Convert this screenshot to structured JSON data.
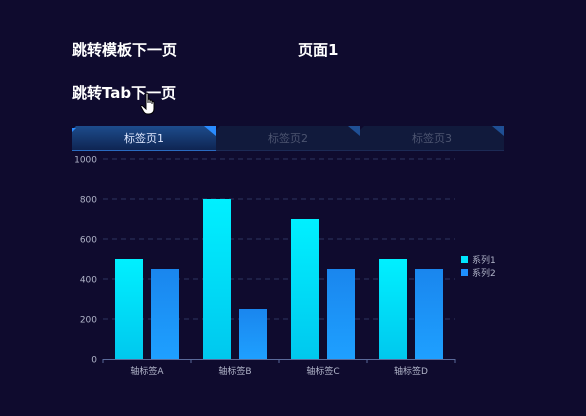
{
  "links": {
    "next_template": "跳转模板下一页",
    "next_tab": "跳转Tab下一页"
  },
  "page_title": "页面1",
  "tabs": [
    {
      "label": "标签页1",
      "active": true
    },
    {
      "label": "标签页2",
      "active": false
    },
    {
      "label": "标签页3",
      "active": false
    }
  ],
  "colors": {
    "background": "#0f0b2e",
    "series1": "#00e5ff",
    "series2": "#1e90ff",
    "axis_text": "#b0b4c8"
  },
  "chart_data": {
    "type": "bar",
    "categories": [
      "轴标签A",
      "轴标签B",
      "轴标签C",
      "轴标签D"
    ],
    "series": [
      {
        "name": "系列1",
        "values": [
          500,
          800,
          700,
          500
        ]
      },
      {
        "name": "系列2",
        "values": [
          450,
          250,
          450,
          450
        ]
      }
    ],
    "ylim": [
      0,
      1000
    ],
    "yticks": [
      "0",
      "200",
      "400",
      "600",
      "800",
      "1000"
    ],
    "grid": true,
    "legend_position": "right"
  }
}
